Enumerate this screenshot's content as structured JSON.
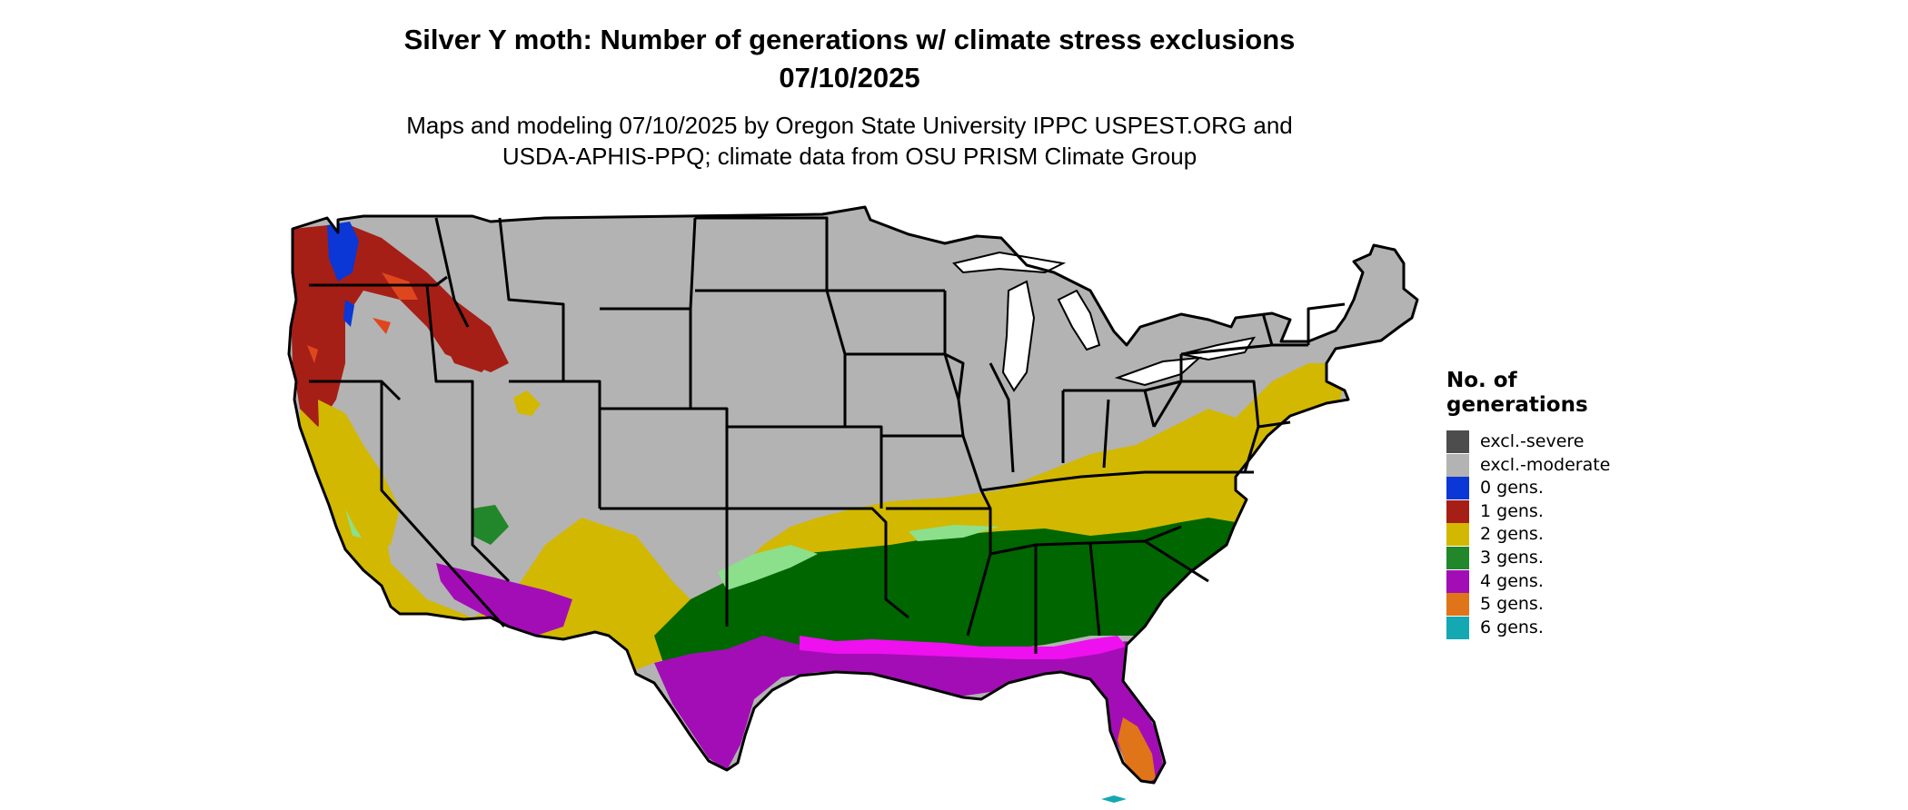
{
  "title": {
    "line1": "Silver Y moth: Number of generations w/ climate stress exclusions",
    "line2": "07/10/2025"
  },
  "subtitle": {
    "line1": "Maps and modeling 07/10/2025 by Oregon State University IPPC USPEST.ORG and",
    "line2": "USDA-APHIS-PPQ; climate data from OSU PRISM Climate Group"
  },
  "legend": {
    "title": "No. of generations",
    "items": [
      {
        "label": "excl.-severe",
        "color": "#4d4d4d"
      },
      {
        "label": "excl.-moderate",
        "color": "#b3b3b3"
      },
      {
        "label": "0 gens.",
        "color": "#0a37d6"
      },
      {
        "label": "1 gens.",
        "color": "#a51f17"
      },
      {
        "label": "2 gens.",
        "color": "#d2b800"
      },
      {
        "label": "3 gens.",
        "color": "#22862b"
      },
      {
        "label": "4 gens.",
        "color": "#a30db6"
      },
      {
        "label": "5 gens.",
        "color": "#df7418"
      },
      {
        "label": "6 gens.",
        "color": "#14a8b2"
      }
    ]
  },
  "map_colors": {
    "water": "#ffffff",
    "dark_green": "#006600",
    "light_green": "#8ce08c",
    "magenta": "#ee10ee",
    "orange_light": "#f29a4a",
    "red_orange": "#e0461e"
  }
}
